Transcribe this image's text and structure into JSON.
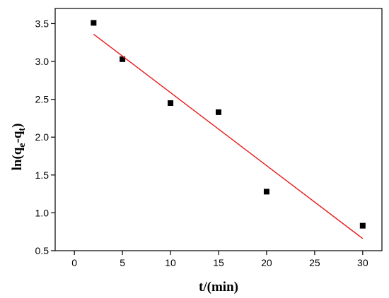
{
  "chart_data": {
    "type": "scatter",
    "xlabel": "t/(min)",
    "ylabel": {
      "prefix": "ln(q",
      "sub1": "e",
      "mid": "-q",
      "sub2": "t",
      "suffix": ")"
    },
    "xlim": [
      -2,
      32
    ],
    "ylim": [
      0.5,
      3.7
    ],
    "xticks": [
      0,
      5,
      10,
      15,
      20,
      25,
      30
    ],
    "yticks": [
      0.5,
      1.0,
      1.5,
      2.0,
      2.5,
      3.0,
      3.5
    ],
    "xtick_labels": [
      "0",
      "5",
      "10",
      "15",
      "20",
      "25",
      "30"
    ],
    "ytick_labels": [
      "0.5",
      "1.0",
      "1.5",
      "2.0",
      "2.5",
      "3.0",
      "3.5"
    ],
    "grid": false,
    "series": [
      {
        "type": "scatter",
        "color": "#000000",
        "marker": "square",
        "x": [
          2,
          5,
          10,
          15,
          20,
          30
        ],
        "y": [
          3.51,
          3.03,
          2.45,
          2.33,
          1.28,
          0.83
        ]
      },
      {
        "type": "line",
        "color": "#e8191b",
        "x": [
          2,
          30
        ],
        "y": [
          3.36,
          0.66
        ]
      }
    ]
  }
}
